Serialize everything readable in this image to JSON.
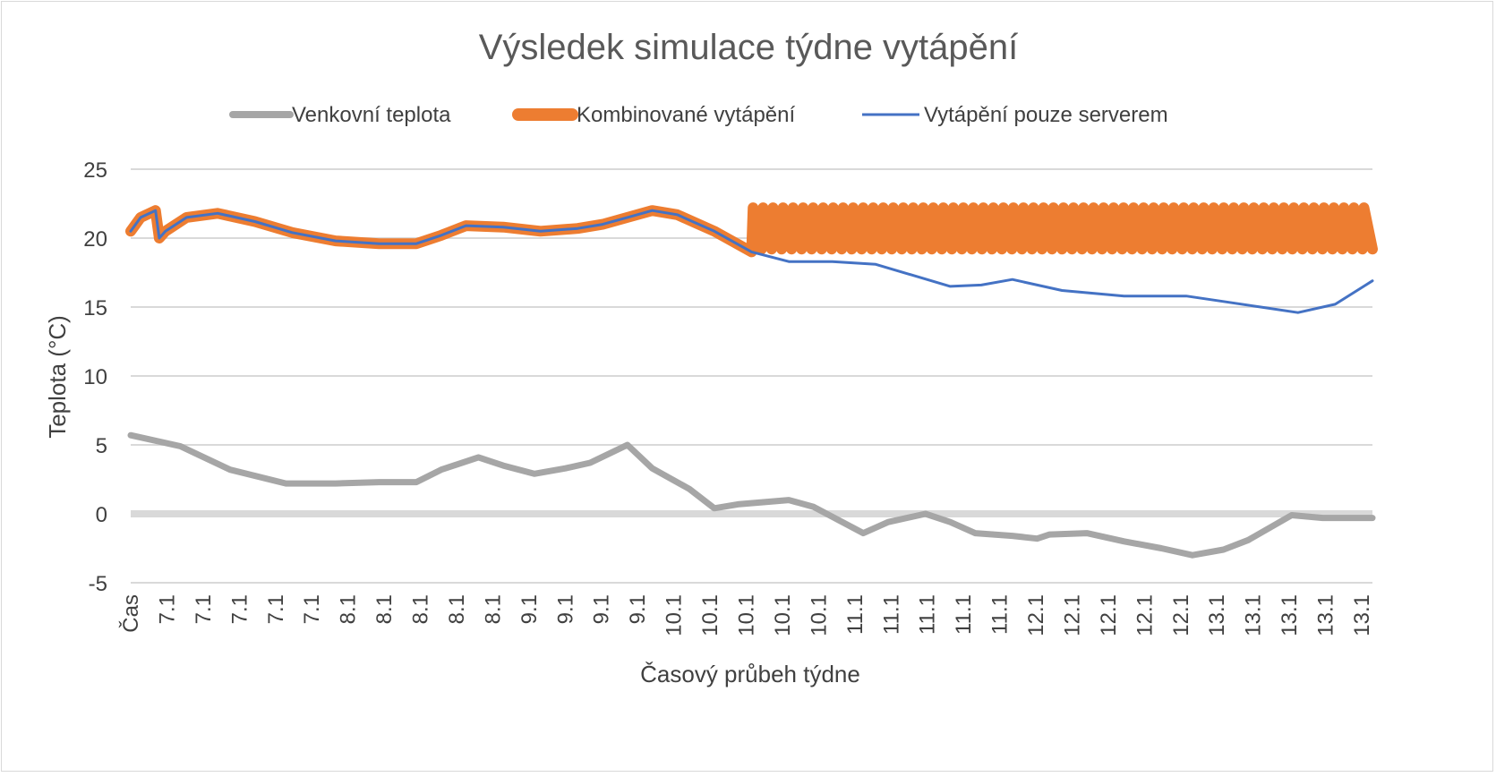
{
  "chart_data": {
    "type": "line",
    "title": "Výsledek simulace týdne vytápění",
    "xlabel": "Časový průbeh týdne",
    "ylabel": "Teplota (°C)",
    "ylim": [
      -5,
      25
    ],
    "yticks": [
      25,
      20,
      15,
      10,
      5,
      0,
      -5
    ],
    "grid": true,
    "legend_position": "top",
    "x_tick_labels": [
      "Čas",
      "7.1",
      "7.1",
      "7.1",
      "7.1",
      "7.1",
      "8.1",
      "8.1",
      "8.1",
      "8.1",
      "8.1",
      "9.1",
      "9.1",
      "9.1",
      "9.1",
      "10.1",
      "10.1",
      "10.1",
      "10.1",
      "10.1",
      "11.1",
      "11.1",
      "11.1",
      "11.1",
      "11.1",
      "12.1",
      "12.1",
      "12.1",
      "12.1",
      "12.1",
      "13.1",
      "13.1",
      "13.1",
      "13.1",
      "13.1"
    ],
    "x_range": [
      0,
      1
    ],
    "series": [
      {
        "name": "Venkovní teplota",
        "color": "#a6a6a6",
        "x": [
          0,
          0.04,
          0.08,
          0.125,
          0.165,
          0.2,
          0.23,
          0.25,
          0.28,
          0.3,
          0.325,
          0.35,
          0.37,
          0.4,
          0.42,
          0.45,
          0.47,
          0.49,
          0.53,
          0.55,
          0.59,
          0.61,
          0.64,
          0.66,
          0.68,
          0.71,
          0.73,
          0.74,
          0.77,
          0.8,
          0.83,
          0.855,
          0.88,
          0.9,
          0.935,
          0.96,
          0.985,
          1
        ],
        "y": [
          5.7,
          4.9,
          3.2,
          2.2,
          2.2,
          2.3,
          2.3,
          3.2,
          4.1,
          3.5,
          2.9,
          3.3,
          3.7,
          5.0,
          3.3,
          1.8,
          0.4,
          0.7,
          1.0,
          0.5,
          -1.4,
          -0.6,
          0.0,
          -0.6,
          -1.4,
          -1.6,
          -1.8,
          -1.5,
          -1.4,
          -2.0,
          -2.5,
          -3.0,
          -2.6,
          -1.9,
          -0.1,
          -0.3,
          -0.3,
          -0.3
        ]
      },
      {
        "name": "Kombinované vytápění",
        "color": "#ed7d31",
        "x": [
          0,
          0.008,
          0.02,
          0.023,
          0.028,
          0.045,
          0.07,
          0.1,
          0.13,
          0.165,
          0.2,
          0.23,
          0.25,
          0.27,
          0.3,
          0.33,
          0.36,
          0.38,
          0.4,
          0.42,
          0.44,
          0.47,
          0.5
        ],
        "y": [
          20.5,
          21.5,
          22.0,
          20.0,
          20.5,
          21.5,
          21.8,
          21.2,
          20.4,
          19.8,
          19.6,
          19.6,
          20.2,
          20.9,
          20.8,
          20.5,
          20.7,
          21.0,
          21.5,
          22.0,
          21.7,
          20.5,
          19.0
        ],
        "oscillation": {
          "from_x": 0.5,
          "to_x": 1.0,
          "min": 19.2,
          "max": 22.2
        }
      },
      {
        "name": "Vytápění pouze serverem",
        "color": "#4472c4",
        "x": [
          0,
          0.008,
          0.02,
          0.023,
          0.028,
          0.045,
          0.07,
          0.1,
          0.13,
          0.165,
          0.2,
          0.23,
          0.25,
          0.27,
          0.3,
          0.33,
          0.36,
          0.38,
          0.4,
          0.42,
          0.44,
          0.47,
          0.5,
          0.53,
          0.565,
          0.6,
          0.63,
          0.66,
          0.685,
          0.71,
          0.75,
          0.8,
          0.85,
          0.88,
          0.91,
          0.94,
          0.97,
          1
        ],
        "y": [
          20.5,
          21.5,
          22.0,
          20.0,
          20.5,
          21.5,
          21.8,
          21.2,
          20.4,
          19.8,
          19.6,
          19.6,
          20.2,
          20.9,
          20.8,
          20.5,
          20.7,
          21.0,
          21.5,
          22.0,
          21.7,
          20.5,
          19.0,
          18.3,
          18.3,
          18.1,
          17.3,
          16.5,
          16.6,
          17.0,
          16.2,
          15.8,
          15.8,
          15.4,
          15.0,
          14.6,
          15.2,
          16.9
        ]
      }
    ]
  }
}
